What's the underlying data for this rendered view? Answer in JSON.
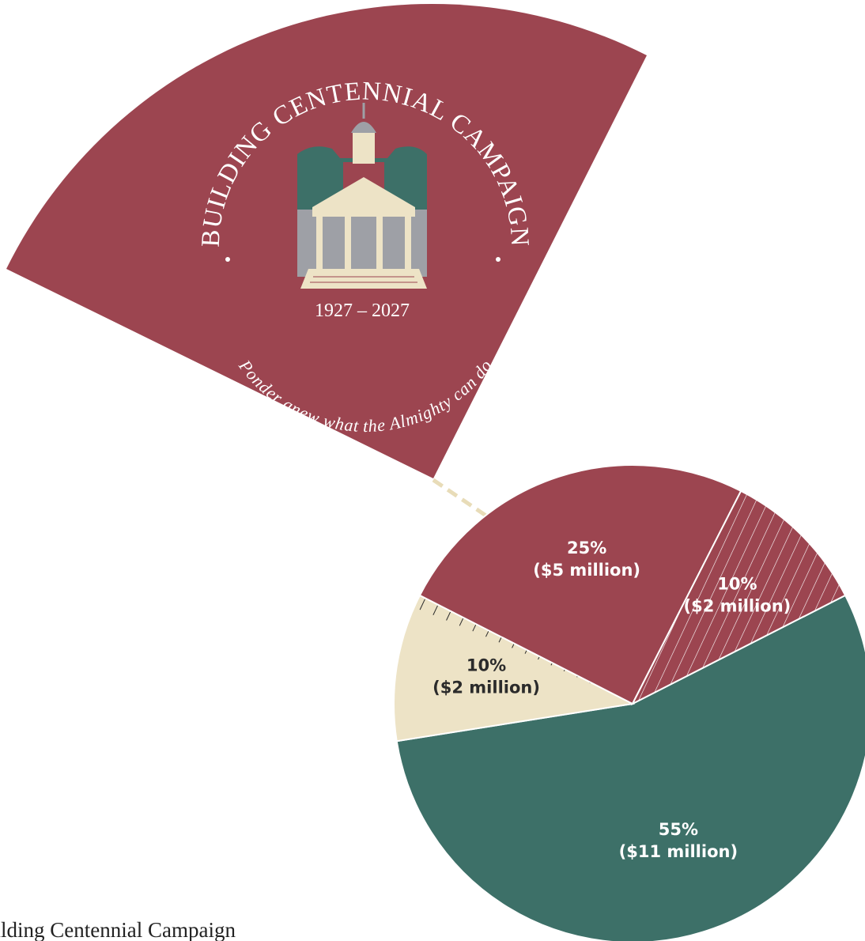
{
  "chart_data": {
    "type": "pie",
    "title": "Building Centennial Campaign",
    "emblem": {
      "top_text": "BUILDING CENTENNIAL CAMPAIGN",
      "bottom_text": "Ponder anew what the Almighty can do",
      "years": "1927 – 2027"
    },
    "values": [
      55,
      10,
      25,
      10
    ],
    "value_labels": [
      "55%",
      "10%",
      "25%",
      "10%"
    ],
    "amounts": [
      "($11 million)",
      "($2 million)",
      "($5 million)",
      "($2 million)"
    ],
    "colors": [
      "#3d7068",
      "#ede3c6",
      "#9c4550",
      "#9c4550"
    ],
    "hatched": [
      false,
      false,
      false,
      true
    ],
    "label_colors": [
      "#ffffff",
      "#2b2b2b",
      "#ffffff",
      "#ffffff"
    ]
  }
}
